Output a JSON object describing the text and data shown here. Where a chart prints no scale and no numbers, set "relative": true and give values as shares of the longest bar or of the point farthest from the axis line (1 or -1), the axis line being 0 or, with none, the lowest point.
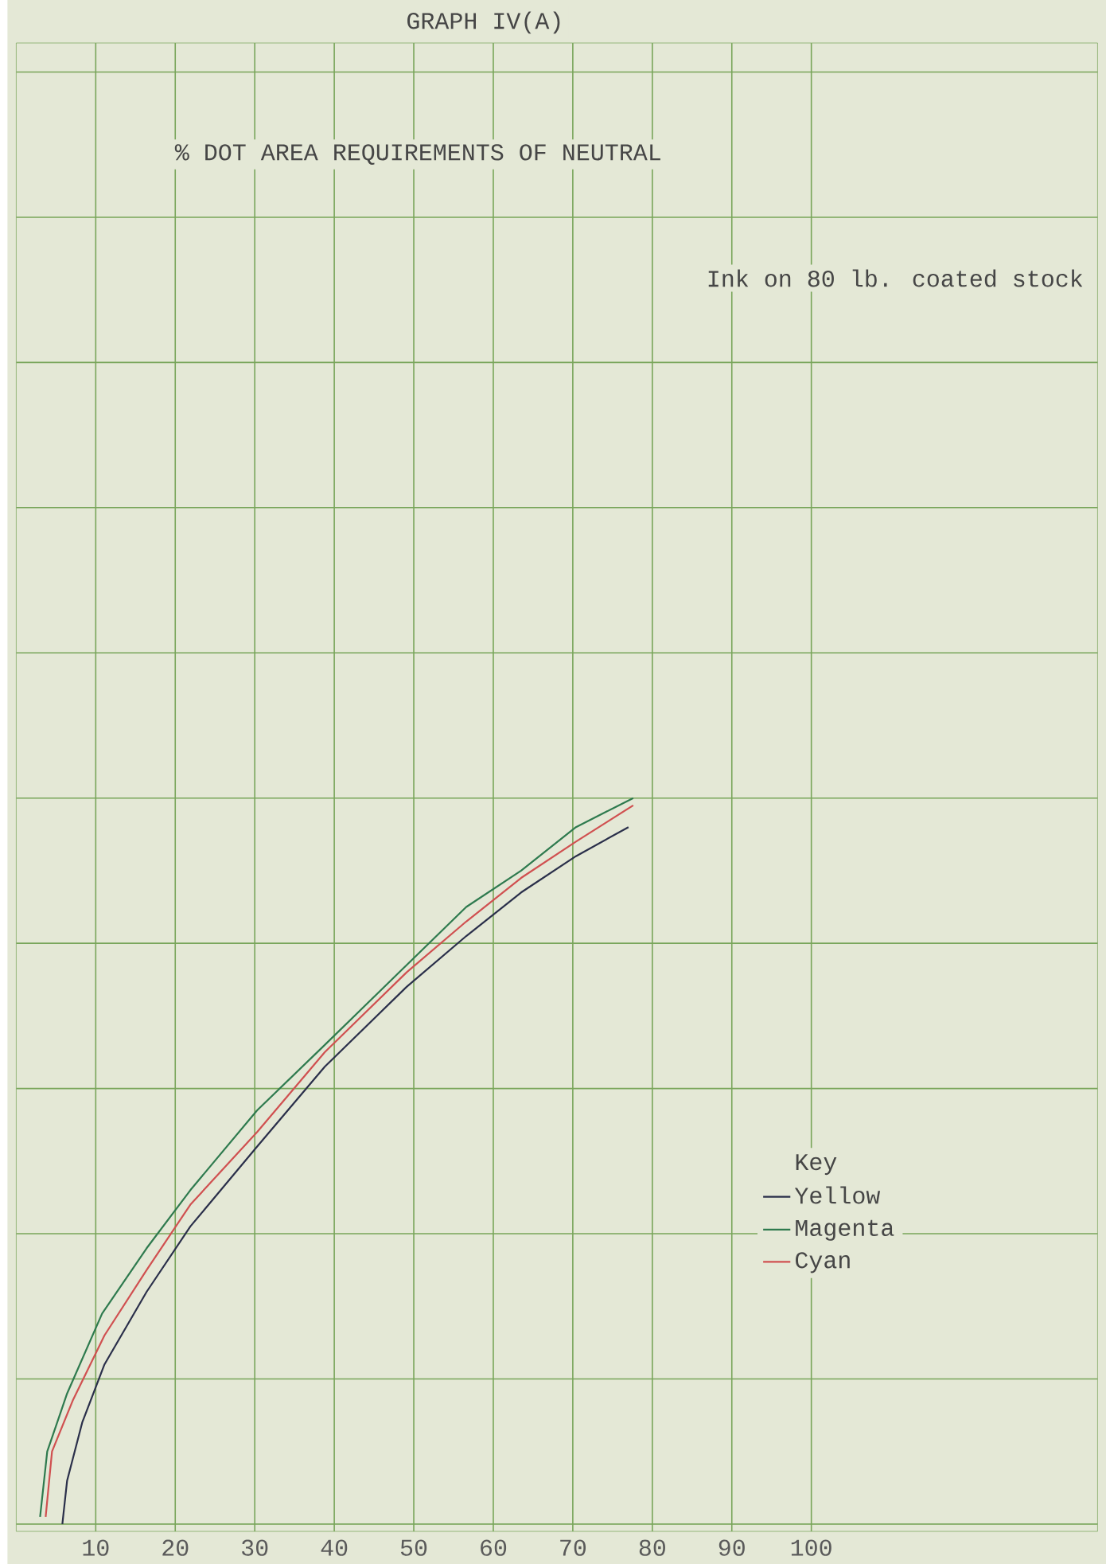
{
  "chart_data": {
    "type": "line",
    "title": "GRAPH IV(A)",
    "subtitle": "% DOT AREA REQUIREMENTS OF NEUTRAL",
    "annotations": [
      "Ink on 80 lb. coated stock"
    ],
    "relative": true,
    "xlim": [
      0,
      136
    ],
    "xticks": [
      10,
      20,
      30,
      40,
      50,
      60,
      70,
      80,
      90,
      100
    ],
    "grid": true,
    "legend": "bottom right",
    "legend_title": "Key",
    "series": [
      {
        "name": "Yellow",
        "color": "#2a2f4a",
        "x": [
          5.8,
          6.4,
          8.3,
          11.1,
          16.4,
          21.9,
          30.3,
          38.8,
          49.1,
          56.6,
          63.5,
          70.4,
          77.0
        ],
        "values": [
          0,
          0.06,
          0.14,
          0.22,
          0.32,
          0.41,
          0.52,
          0.63,
          0.74,
          0.81,
          0.87,
          0.92,
          0.96
        ]
      },
      {
        "name": "Magenta",
        "color": "#2e7a4e",
        "x": [
          3.0,
          3.9,
          6.4,
          10.8,
          16.4,
          21.9,
          30.3,
          38.8,
          49.1,
          56.6,
          63.5,
          70.4,
          77.6
        ],
        "values": [
          0.01,
          0.1,
          0.18,
          0.29,
          0.38,
          0.46,
          0.57,
          0.66,
          0.77,
          0.85,
          0.9,
          0.96,
          1
        ]
      },
      {
        "name": "Cyan",
        "color": "#d05050",
        "x": [
          3.7,
          4.5,
          7.1,
          11.1,
          16.4,
          21.9,
          30.3,
          38.8,
          49.1,
          56.6,
          63.5,
          70.4,
          77.6
        ],
        "values": [
          0.01,
          0.1,
          0.17,
          0.26,
          0.35,
          0.44,
          0.54,
          0.65,
          0.76,
          0.83,
          0.89,
          0.94,
          0.99
        ]
      }
    ]
  }
}
